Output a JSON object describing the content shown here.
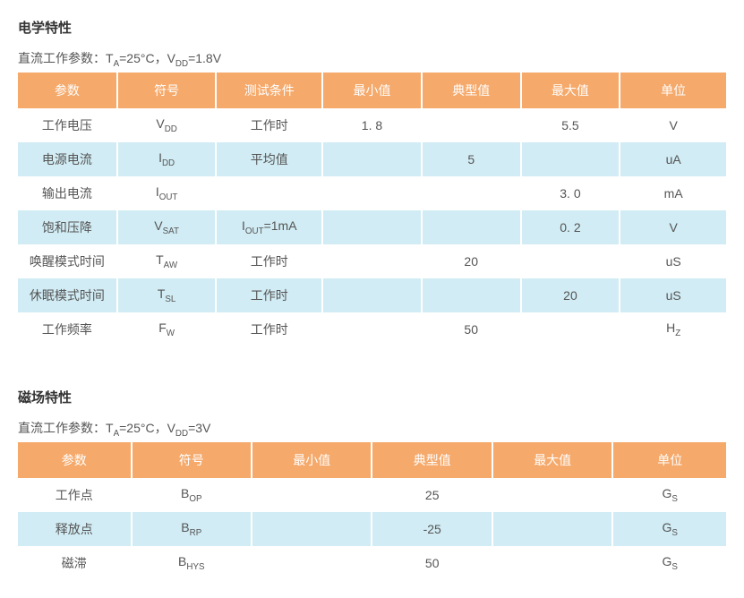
{
  "colors": {
    "header_bg": "#f5a96b",
    "header_text": "#ffffff",
    "row_odd_bg": "#ffffff",
    "row_even_bg": "#d1ecf4",
    "body_text": "#555555",
    "title_text": "#333333"
  },
  "typography": {
    "base_font_size_pt": 10.5,
    "title_font_size_pt": 11,
    "font_family": "Microsoft YaHei / PingFang SC"
  },
  "section1": {
    "title": "电学特性",
    "subtitle_prefix": "直流工作参数：T",
    "subtitle_sub1": "A",
    "subtitle_mid": "=25°C，V",
    "subtitle_sub2": "DD",
    "subtitle_suffix": "=1.8V",
    "table": {
      "type": "table",
      "column_widths_pct": [
        14,
        14,
        15,
        14,
        14,
        14,
        15
      ],
      "columns": [
        "参数",
        "符号",
        "测试条件",
        "最小值",
        "典型值",
        "最大值",
        "单位"
      ],
      "rows": [
        {
          "param": "工作电压",
          "sym_main": "V",
          "sym_sub": "DD",
          "cond": "工作时",
          "min": "1. 8",
          "typ": "",
          "max": "5.5",
          "unit": "V"
        },
        {
          "param": "电源电流",
          "sym_main": "I",
          "sym_sub": "DD",
          "cond": "平均值",
          "min": "",
          "typ": "5",
          "max": "",
          "unit": "uA"
        },
        {
          "param": "输出电流",
          "sym_main": "I",
          "sym_sub": "OUT",
          "cond": "",
          "min": "",
          "typ": "",
          "max": "3. 0",
          "unit": "mA"
        },
        {
          "param": "饱和压降",
          "sym_main": "V",
          "sym_sub": "SAT",
          "cond_main": "I",
          "cond_sub": "OUT",
          "cond_suffix": "=1mA",
          "min": "",
          "typ": "",
          "max": "0. 2",
          "unit": "V"
        },
        {
          "param": "唤醒模式时间",
          "sym_main": "T",
          "sym_sub": "AW",
          "cond": "工作时",
          "min": "",
          "typ": "20",
          "max": "",
          "unit": "uS"
        },
        {
          "param": "休眠模式时间",
          "sym_main": "T",
          "sym_sub": "SL",
          "cond": "工作时",
          "min": "",
          "typ": "",
          "max": "20",
          "unit": "uS"
        },
        {
          "param": "工作频率",
          "sym_main": "F",
          "sym_sub": "W",
          "cond": "工作时",
          "min": "",
          "typ": "50",
          "max": "",
          "unit_main": "H",
          "unit_sub": "Z"
        }
      ]
    }
  },
  "section2": {
    "title": "磁场特性",
    "subtitle_prefix": "直流工作参数：T",
    "subtitle_sub1": "A",
    "subtitle_mid": "=25°C，V",
    "subtitle_sub2": "DD",
    "subtitle_suffix": "=3V",
    "table": {
      "type": "table",
      "column_widths_pct": [
        16,
        17,
        17,
        17,
        17,
        16
      ],
      "columns": [
        "参数",
        "符号",
        "最小值",
        "典型值",
        "最大值",
        "单位"
      ],
      "rows": [
        {
          "param": "工作点",
          "sym_main": "B",
          "sym_sub": "OP",
          "min": "",
          "typ": "25",
          "max": "",
          "unit_main": "G",
          "unit_sub": "S"
        },
        {
          "param": "释放点",
          "sym_main": "B",
          "sym_sub": "RP",
          "min": "",
          "typ": "-25",
          "max": "",
          "unit_main": "G",
          "unit_sub": "S"
        },
        {
          "param": "磁滞",
          "sym_main": "B",
          "sym_sub": "HYS",
          "min": "",
          "typ": "50",
          "max": "",
          "unit_main": "G",
          "unit_sub": "S"
        }
      ]
    }
  }
}
